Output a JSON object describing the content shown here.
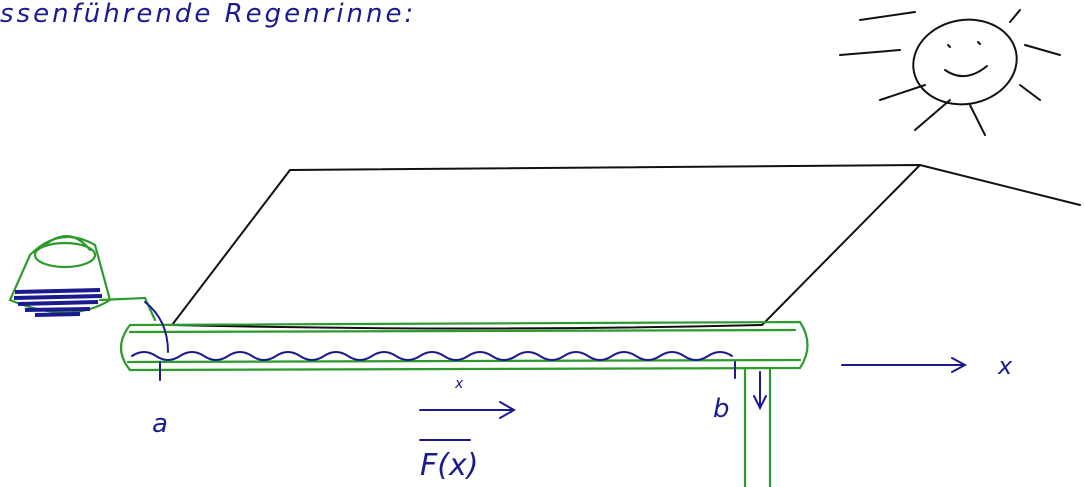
{
  "title": "ssenführende Regenrinne:",
  "labels": {
    "start": "a",
    "end": "b",
    "position": "x",
    "axis": "x",
    "flow": "F(x)"
  }
}
